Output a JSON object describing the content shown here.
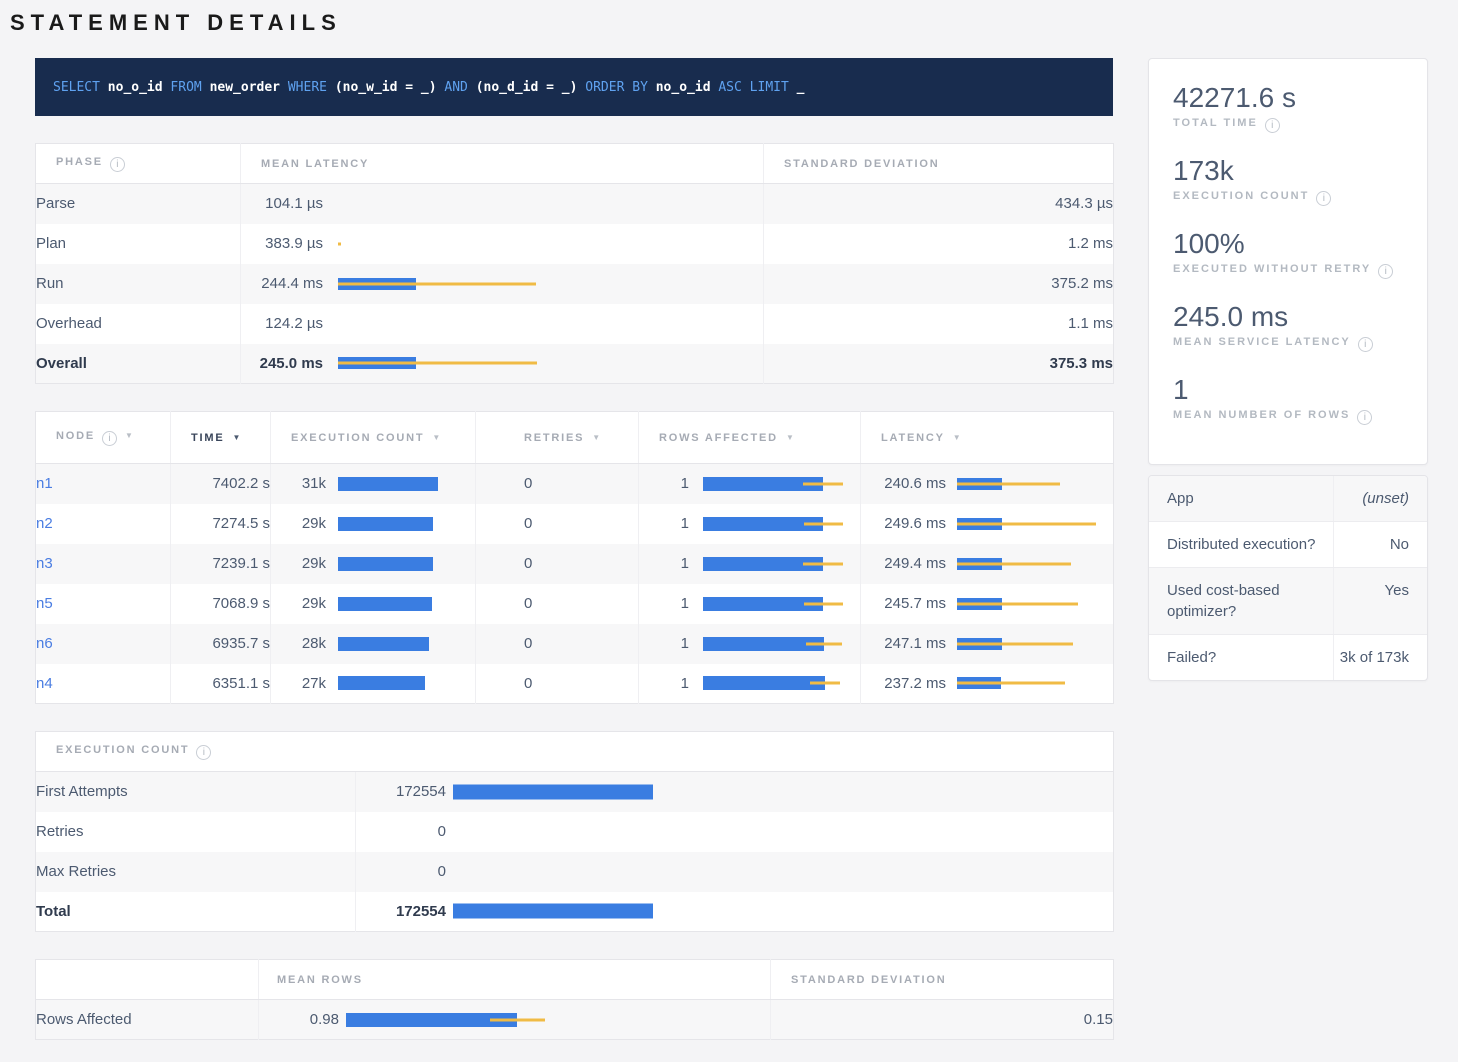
{
  "title": "STATEMENT DETAILS",
  "colors": {
    "bar_blue": "#3a7de1",
    "bar_yellow": "#f0bb45",
    "sql_bg": "#182c4e",
    "sql_keyword": "#5fa2f0",
    "link": "#4a7de2"
  },
  "sql": {
    "tokens": [
      {
        "text": "SELECT ",
        "keyword": true
      },
      {
        "text": "no_o_id",
        "keyword": false
      },
      {
        "text": " FROM ",
        "keyword": true
      },
      {
        "text": "new_order",
        "keyword": false
      },
      {
        "text": " WHERE ",
        "keyword": true
      },
      {
        "text": "(no_w_id = _)",
        "keyword": false
      },
      {
        "text": " AND ",
        "keyword": true
      },
      {
        "text": "(no_d_id = _)",
        "keyword": false
      },
      {
        "text": " ORDER BY ",
        "keyword": true
      },
      {
        "text": "no_o_id",
        "keyword": false
      },
      {
        "text": " ASC LIMIT ",
        "keyword": true
      },
      {
        "text": "_",
        "keyword": false
      }
    ]
  },
  "phase_table": {
    "headers": {
      "phase": "PHASE",
      "mean_latency": "MEAN LATENCY",
      "std_dev": "STANDARD DEVIATION"
    },
    "rows": [
      {
        "label": "Parse",
        "mean": "104.1 µs",
        "std": "434.3 µs",
        "bold": false,
        "bar": null
      },
      {
        "label": "Plan",
        "mean": "383.9 µs",
        "std": "1.2 ms",
        "bold": false,
        "bar": {
          "blue": 0,
          "dev0": 0,
          "dev1": 3
        }
      },
      {
        "label": "Run",
        "mean": "244.4 ms",
        "std": "375.2 ms",
        "bold": false,
        "bar": {
          "blue": 78,
          "dev0": 0,
          "dev1": 198
        }
      },
      {
        "label": "Overhead",
        "mean": "124.2 µs",
        "std": "1.1 ms",
        "bold": false,
        "bar": null
      },
      {
        "label": "Overall",
        "mean": "245.0 ms",
        "std": "375.3 ms",
        "bold": true,
        "bar": {
          "blue": 78,
          "dev0": 0,
          "dev1": 199
        }
      }
    ]
  },
  "node_table": {
    "headers": [
      {
        "label": "NODE",
        "info": true,
        "sort": true,
        "active": false
      },
      {
        "label": "TIME",
        "info": false,
        "sort": true,
        "active": true
      },
      {
        "label": "EXECUTION COUNT",
        "info": false,
        "sort": true,
        "active": false
      },
      {
        "label": "RETRIES",
        "info": false,
        "sort": true,
        "active": false
      },
      {
        "label": "ROWS AFFECTED",
        "info": false,
        "sort": true,
        "active": false
      },
      {
        "label": "LATENCY",
        "info": false,
        "sort": true,
        "active": false
      }
    ],
    "rows": [
      {
        "node": "n1",
        "time": "7402.2 s",
        "exec": {
          "text": "31k",
          "blue": 100
        },
        "retries": "0",
        "rows": {
          "text": "1",
          "blue": 120,
          "dev0": 100,
          "dev1": 140
        },
        "latency": {
          "text": "240.6 ms",
          "blue": 45,
          "dev0": 0,
          "dev1": 103
        }
      },
      {
        "node": "n2",
        "time": "7274.5 s",
        "exec": {
          "text": "29k",
          "blue": 95
        },
        "retries": "0",
        "rows": {
          "text": "1",
          "blue": 120,
          "dev0": 101,
          "dev1": 140
        },
        "latency": {
          "text": "249.6 ms",
          "blue": 45,
          "dev0": 0,
          "dev1": 139
        }
      },
      {
        "node": "n3",
        "time": "7239.1 s",
        "exec": {
          "text": "29k",
          "blue": 95
        },
        "retries": "0",
        "rows": {
          "text": "1",
          "blue": 120,
          "dev0": 100,
          "dev1": 140
        },
        "latency": {
          "text": "249.4 ms",
          "blue": 45,
          "dev0": 0,
          "dev1": 114
        }
      },
      {
        "node": "n5",
        "time": "7068.9 s",
        "exec": {
          "text": "29k",
          "blue": 94
        },
        "retries": "0",
        "rows": {
          "text": "1",
          "blue": 120,
          "dev0": 101,
          "dev1": 140
        },
        "latency": {
          "text": "245.7 ms",
          "blue": 45,
          "dev0": 0,
          "dev1": 121
        }
      },
      {
        "node": "n6",
        "time": "6935.7 s",
        "exec": {
          "text": "28k",
          "blue": 91
        },
        "retries": "0",
        "rows": {
          "text": "1",
          "blue": 121,
          "dev0": 103,
          "dev1": 139
        },
        "latency": {
          "text": "247.1 ms",
          "blue": 45,
          "dev0": 0,
          "dev1": 116
        }
      },
      {
        "node": "n4",
        "time": "6351.1 s",
        "exec": {
          "text": "27k",
          "blue": 87
        },
        "retries": "0",
        "rows": {
          "text": "1",
          "blue": 122,
          "dev0": 107,
          "dev1": 137
        },
        "latency": {
          "text": "237.2 ms",
          "blue": 44,
          "dev0": 0,
          "dev1": 108
        }
      }
    ]
  },
  "execution_count_table": {
    "title": "EXECUTION COUNT",
    "rows": [
      {
        "label": "First Attempts",
        "value": "172554",
        "blue": 200,
        "bold": false
      },
      {
        "label": "Retries",
        "value": "0",
        "blue": 0,
        "bold": false
      },
      {
        "label": "Max Retries",
        "value": "0",
        "blue": 0,
        "bold": false
      },
      {
        "label": "Total",
        "value": "172554",
        "blue": 200,
        "bold": true
      }
    ]
  },
  "rows_affected_table": {
    "headers": {
      "blank": "",
      "mean_rows": "MEAN ROWS",
      "std_dev": "STANDARD DEVIATION"
    },
    "rows": [
      {
        "label": "Rows Affected",
        "mean": {
          "text": "0.98",
          "blue": 171,
          "dev0": 144,
          "dev1": 199
        },
        "std": "0.15"
      }
    ]
  },
  "summary_stats": [
    {
      "value": "42271.6 s",
      "label": "TOTAL TIME"
    },
    {
      "value": "173k",
      "label": "EXECUTION COUNT"
    },
    {
      "value": "100%",
      "label": "EXECUTED WITHOUT RETRY"
    },
    {
      "value": "245.0 ms",
      "label": "MEAN SERVICE LATENCY"
    },
    {
      "value": "1",
      "label": "MEAN NUMBER OF ROWS"
    }
  ],
  "details_table": [
    {
      "label": "App",
      "value": "(unset)",
      "muted": true
    },
    {
      "label": "Distributed execution?",
      "value": "No",
      "muted": false
    },
    {
      "label": "Used cost-based optimizer?",
      "value": "Yes",
      "muted": false
    },
    {
      "label": "Failed?",
      "value": "3k of 173k",
      "muted": false
    }
  ]
}
